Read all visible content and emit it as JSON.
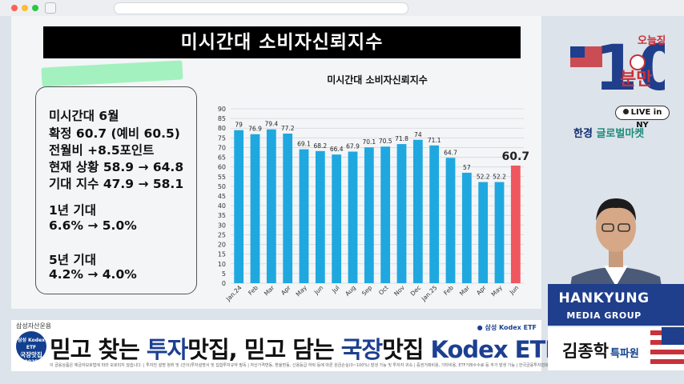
{
  "window": {
    "dot_colors": [
      "#ff5f57",
      "#febc2e",
      "#28c840"
    ]
  },
  "slide": {
    "title": "미시간대 소비자신뢰지수",
    "info": {
      "line1": "미시간대 6월",
      "line2": "확정 60.7 (예비 60.5)",
      "line3": "전월비 +8.5포인트",
      "line4": "현재 상황 58.9 → 64.8",
      "line5": "기대 지수 47.9 → 58.1",
      "line6": "1년 기대",
      "line7": "6.6% → 5.0%",
      "line8": "5년 기대",
      "line9": "4.2% → 4.0%"
    }
  },
  "chart_data": {
    "type": "bar",
    "title": "미시간대 소비자신뢰지수",
    "categories": [
      "Jan.24",
      "Feb",
      "Mar",
      "Apr",
      "May",
      "Jun",
      "Jul",
      "Aug",
      "Sep",
      "Oct",
      "Nov",
      "Dec",
      "Jan.25",
      "Feb",
      "Mar",
      "Apr",
      "May",
      "Jun"
    ],
    "values": [
      79,
      76.9,
      79.4,
      77.2,
      69.1,
      68.2,
      66.4,
      67.9,
      70.1,
      70.5,
      71.8,
      74,
      71.1,
      64.7,
      57,
      52.2,
      52.2,
      60.7
    ],
    "value_labels": [
      "79",
      "76.9",
      "79.4",
      "77.2",
      "69.1",
      "68.2",
      "66.4",
      "67.9",
      "70.1",
      "70.5",
      "71.8",
      "74",
      "71.1",
      "64.7",
      "57",
      "52.2",
      "52.2",
      "60.7"
    ],
    "ylim": [
      0,
      90
    ],
    "yticks": [
      "0",
      "5",
      "10",
      "15",
      "20",
      "25",
      "30",
      "35",
      "40",
      "45",
      "50",
      "55",
      "60",
      "65",
      "70",
      "75",
      "80",
      "85",
      "90"
    ],
    "xlabel": "",
    "ylabel": "",
    "colors": {
      "bar": "#1fa8e0",
      "highlight": "#f0565e"
    },
    "highlight_index": 17
  },
  "side": {
    "logo_top": "오늘장",
    "logo_num": "10",
    "logo_bottom": "분만",
    "live": "LIVE in NY",
    "brand_prefix": "한경",
    "brand_name": "글로벌마켓"
  },
  "lower_third": {
    "company": "HANKYUNG",
    "sub": "MEDIA GROUP",
    "name": "김종학",
    "title": "특파원"
  },
  "ad": {
    "sponsor": "삼성자산운용",
    "right_tag": "삼성 Kodex ETF",
    "badge_line1": "삼성 Kodex ETF",
    "badge_line2": "국장맛집",
    "badge_line3": "2025",
    "main_part1": "믿고 찾는 ",
    "main_part2": "투자",
    "main_part3": "맛집, 믿고 담는 ",
    "main_part4": "국장",
    "main_part5": "맛집 ",
    "main_part6": "Kodex ETF!",
    "fine_print": "이 금융상품은 예금자보호법에 따라 보호되지 않습니다. | 투자전 설명 청취 및 (간이)투자설명서 및 집합투자규약 필독 | 자산가격변동, 환율변동, 신용등급 하락 등에 따른 원금손실(0~100%) 발생 가능 및 투자자 귀속 | 증권거래비용, 기타비용, ETF거래수수료 등 추가 발생 가능 | 한국금융투자협회 심사필 제25-02814호 (2025-06-25~2026-06-24)"
  }
}
